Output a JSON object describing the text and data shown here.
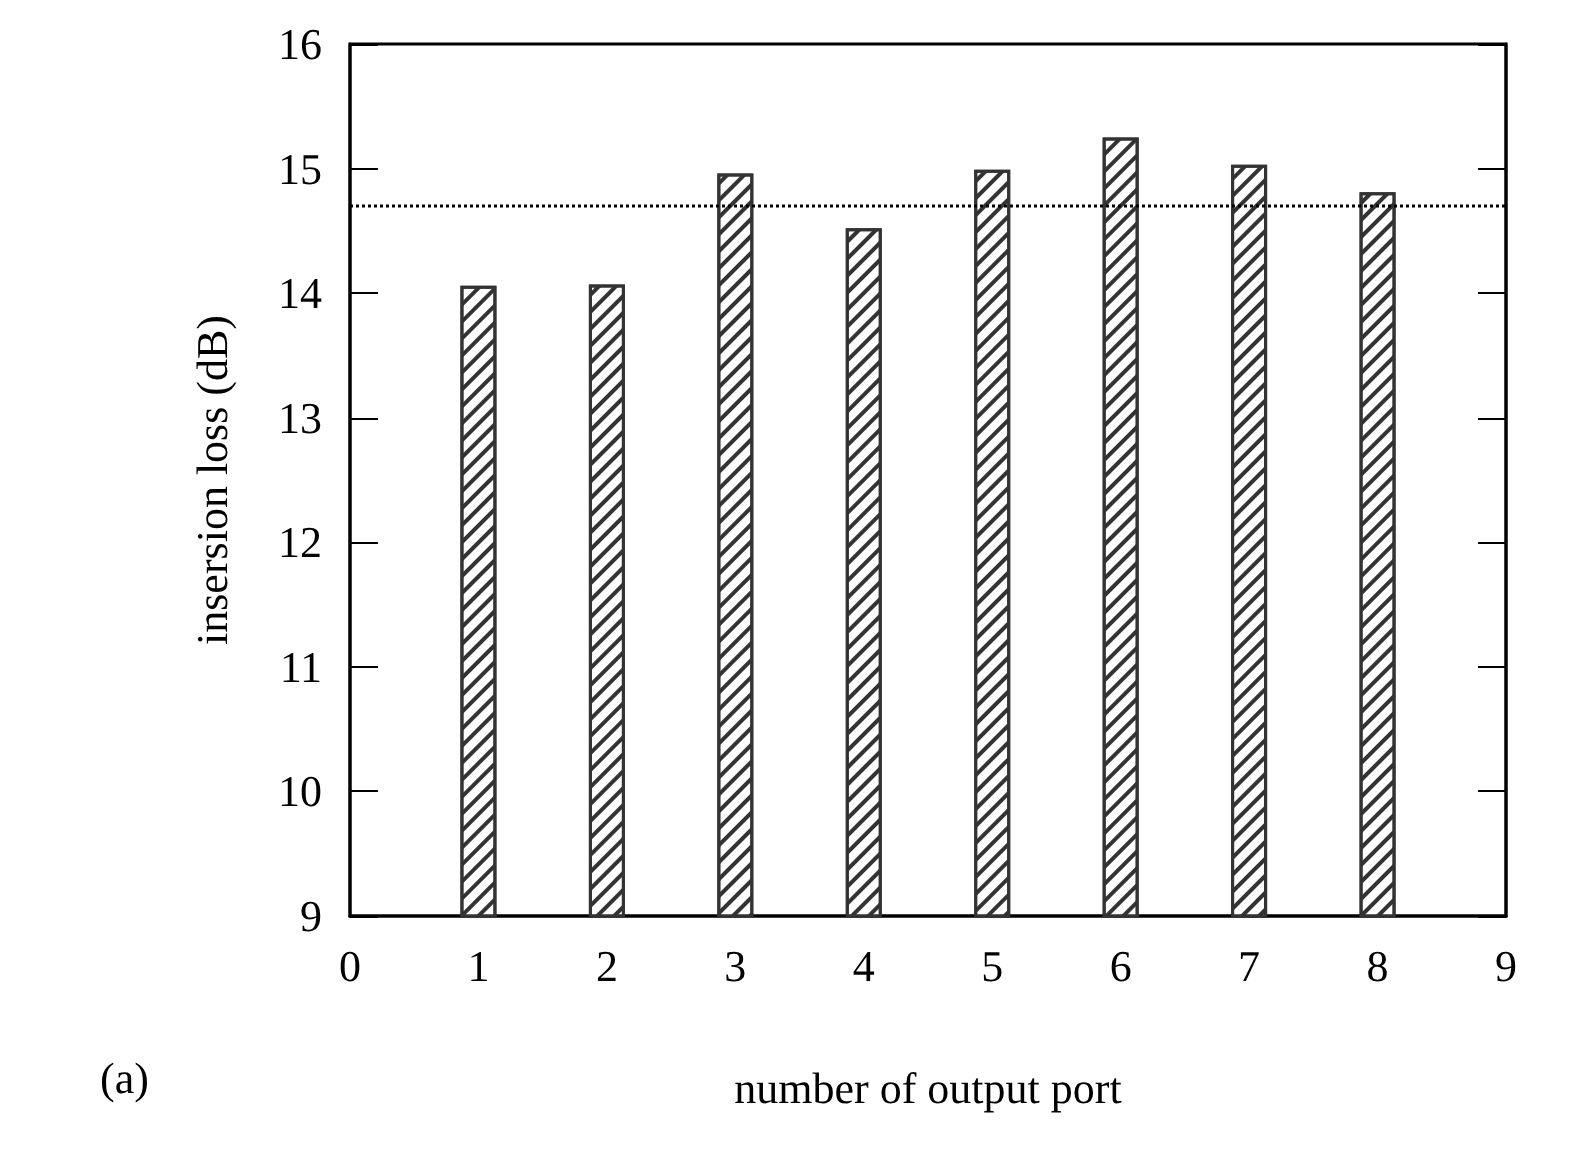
{
  "chart_data": {
    "type": "bar",
    "xlabel": "number of output port",
    "ylabel": "insersion loss (dB)",
    "x": [
      1,
      2,
      3,
      4,
      5,
      6,
      7,
      8
    ],
    "values": [
      14.06,
      14.07,
      14.96,
      14.52,
      14.99,
      15.25,
      15.03,
      14.81
    ],
    "color": "#333333",
    "xlim": [
      0,
      9
    ],
    "xticks": [
      0,
      1,
      2,
      3,
      4,
      5,
      6,
      7,
      8,
      9
    ],
    "ylim": [
      9,
      16
    ],
    "yticks": [
      9,
      10,
      11,
      12,
      13,
      14,
      15,
      16
    ],
    "ref_lines": [
      {
        "axis": "y",
        "value": 14.7,
        "label": null,
        "line_style": "dotted",
        "color": "#000000"
      }
    ],
    "annotations": [
      "(a)"
    ]
  }
}
